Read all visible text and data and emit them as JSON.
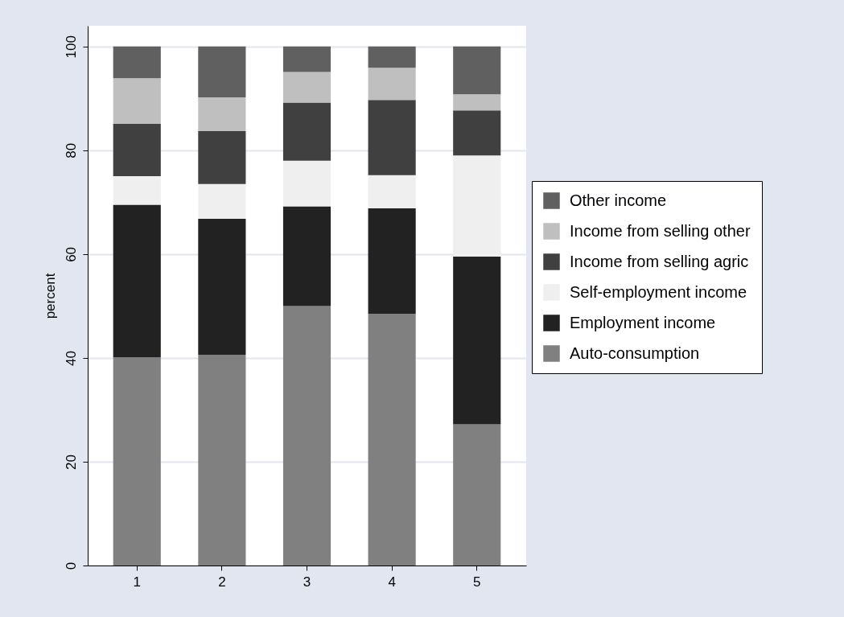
{
  "chart_data": {
    "type": "bar",
    "stacked": true,
    "ylabel": "percent",
    "categories": [
      "1",
      "2",
      "3",
      "4",
      "5"
    ],
    "series": [
      {
        "name": "Auto-consumption",
        "color": "#808080",
        "values": [
          40.1,
          40.6,
          50.0,
          48.5,
          27.2
        ]
      },
      {
        "name": "Employment income",
        "color": "#222222",
        "values": [
          29.4,
          26.2,
          19.2,
          20.3,
          32.3
        ]
      },
      {
        "name": "Self-employment income",
        "color": "#efefef",
        "values": [
          5.5,
          6.7,
          8.8,
          6.4,
          19.5
        ]
      },
      {
        "name": "Income from selling agric",
        "color": "#404040",
        "values": [
          10.1,
          10.2,
          11.2,
          14.5,
          8.7
        ]
      },
      {
        "name": "Income from selling other",
        "color": "#bfbfbf",
        "values": [
          8.8,
          6.5,
          5.9,
          6.2,
          3.1
        ]
      },
      {
        "name": "Other income",
        "color": "#606060",
        "values": [
          6.1,
          9.8,
          4.9,
          4.1,
          9.2
        ]
      }
    ],
    "ylim": [
      0,
      104
    ],
    "yticks": [
      0,
      20,
      40,
      60,
      80,
      100
    ],
    "grid": "y",
    "legend": "right"
  }
}
